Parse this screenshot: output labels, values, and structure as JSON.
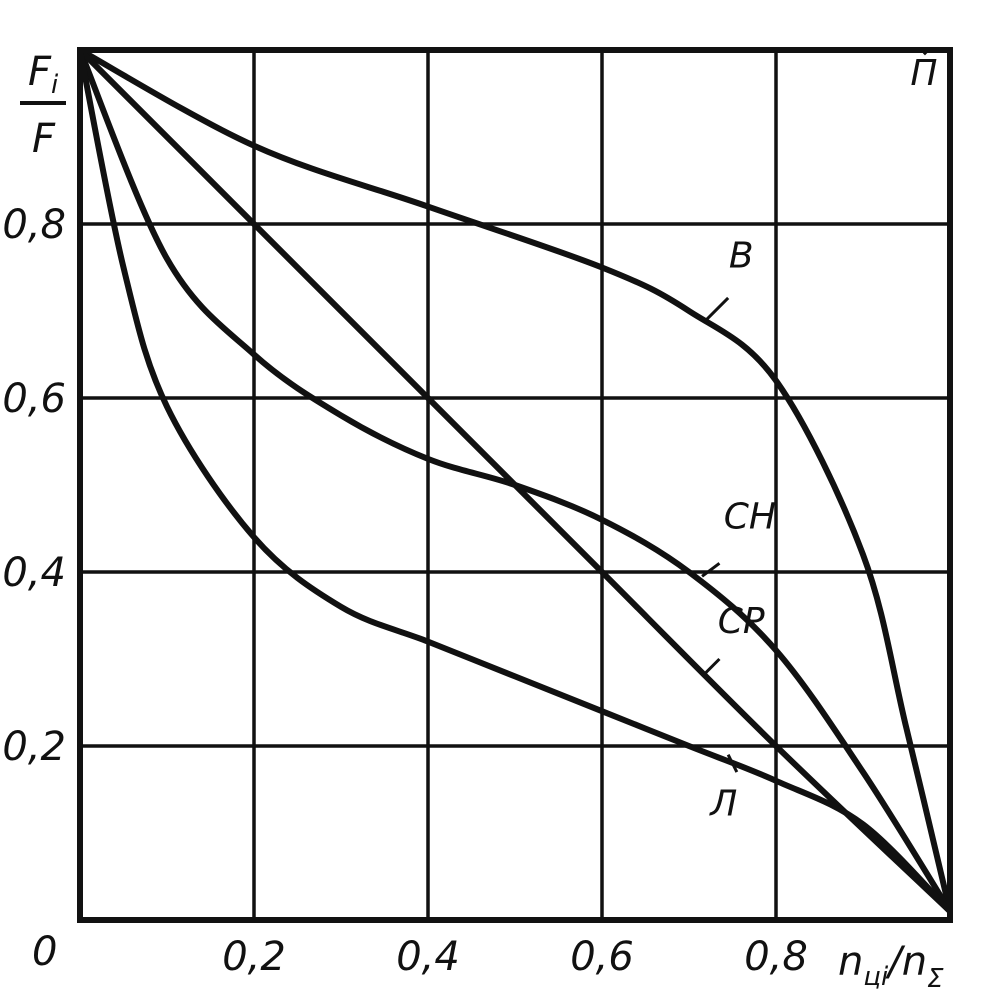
{
  "chart_data": {
    "type": "line",
    "y_title": {
      "top": "F",
      "top_sub": "i",
      "bottom": "F"
    },
    "x_title": {
      "n": "n",
      "n_sub": "цi",
      "slash": "/",
      "n2": "n",
      "n2_sub": "Σ"
    },
    "origin_label": "0",
    "xlim": [
      0,
      1
    ],
    "ylim": [
      0,
      1
    ],
    "grid": true,
    "x_ticks": [
      {
        "value": 0.2,
        "label": "0,2"
      },
      {
        "value": 0.4,
        "label": "0,4"
      },
      {
        "value": 0.6,
        "label": "0,6"
      },
      {
        "value": 0.8,
        "label": "0,8"
      }
    ],
    "y_ticks": [
      {
        "value": 0.2,
        "label": "0,2"
      },
      {
        "value": 0.4,
        "label": "0,4"
      },
      {
        "value": 0.6,
        "label": "0,6"
      },
      {
        "value": 0.8,
        "label": "0,8"
      }
    ],
    "series": [
      {
        "name": "B",
        "x": [
          0,
          0.2,
          0.4,
          0.6,
          0.7,
          0.8,
          0.9,
          0.95,
          1.0
        ],
        "y": [
          1.0,
          0.89,
          0.82,
          0.75,
          0.7,
          0.62,
          0.42,
          0.22,
          0.01
        ]
      },
      {
        "name": "CH",
        "x": [
          0,
          0.1,
          0.2,
          0.3,
          0.4,
          0.5,
          0.6,
          0.7,
          0.8,
          0.9,
          1.0
        ],
        "y": [
          1.0,
          0.76,
          0.65,
          0.58,
          0.53,
          0.5,
          0.46,
          0.4,
          0.31,
          0.17,
          0.01
        ]
      },
      {
        "name": "CP",
        "x": [
          0,
          0.2,
          0.4,
          0.5,
          0.6,
          0.8,
          1.0
        ],
        "y": [
          1.0,
          0.8,
          0.6,
          0.5,
          0.4,
          0.2,
          0.01
        ]
      },
      {
        "name": "Л",
        "x": [
          0,
          0.05,
          0.1,
          0.2,
          0.3,
          0.4,
          0.5,
          0.6,
          0.7,
          0.8,
          0.9,
          1.0
        ],
        "y": [
          1.0,
          0.75,
          0.59,
          0.44,
          0.36,
          0.32,
          0.28,
          0.24,
          0.2,
          0.16,
          0.11,
          0.01
        ]
      }
    ],
    "annotations": [
      {
        "label": "П",
        "x": 0.97,
        "y": 0.96,
        "leader": [
          [
            0.97,
            0.995
          ],
          [
            0.975,
            1.0
          ]
        ]
      },
      {
        "label": "B",
        "x": 0.76,
        "y": 0.75,
        "leader": [
          [
            0.745,
            0.715
          ],
          [
            0.72,
            0.69
          ]
        ]
      },
      {
        "label": "CH",
        "x": 0.77,
        "y": 0.45,
        "leader": [
          [
            0.735,
            0.41
          ],
          [
            0.715,
            0.395
          ]
        ]
      },
      {
        "label": "CP",
        "x": 0.76,
        "y": 0.33,
        "leader": [
          [
            0.735,
            0.3
          ],
          [
            0.715,
            0.28
          ]
        ]
      },
      {
        "label": "Л",
        "x": 0.74,
        "y": 0.12,
        "leader": [
          [
            0.755,
            0.17
          ],
          [
            0.745,
            0.19
          ]
        ]
      }
    ]
  }
}
